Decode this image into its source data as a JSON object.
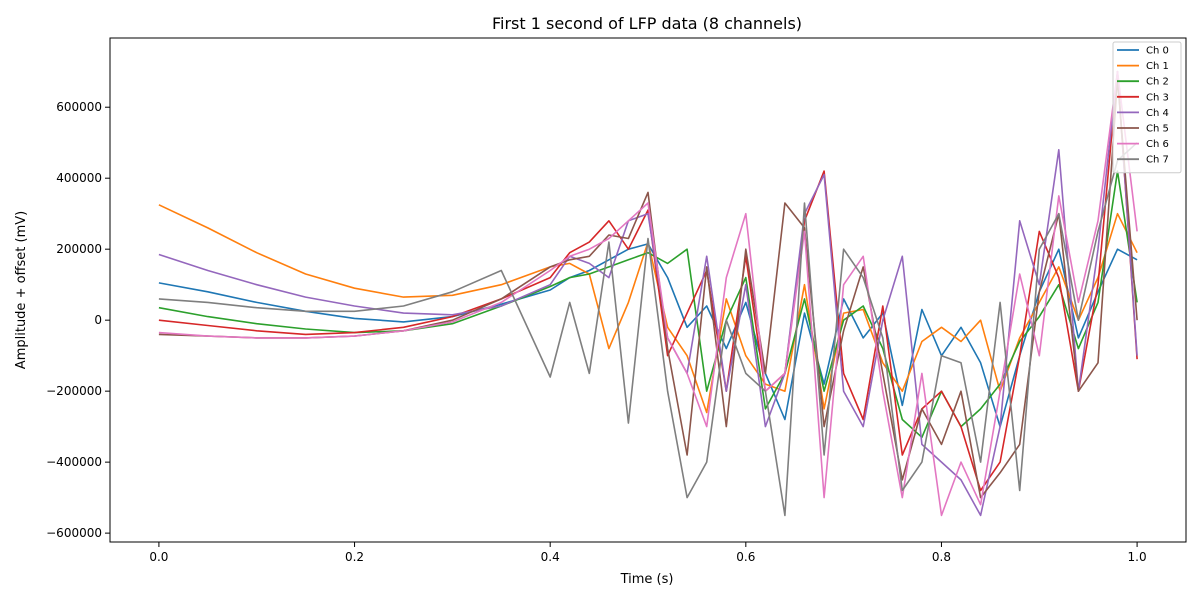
{
  "chart_data": {
    "type": "line",
    "title": "First 1 second of LFP data (8 channels)",
    "xlabel": "Time (s)",
    "ylabel": "Amplitude + offset (mV)",
    "xlim": [
      -0.05,
      1.05
    ],
    "ylim": [
      -625000,
      795000
    ],
    "xticks": [
      0.0,
      0.2,
      0.4,
      0.6,
      0.8,
      1.0
    ],
    "xtick_labels": [
      "0.0",
      "0.2",
      "0.4",
      "0.6",
      "0.8",
      "1.0"
    ],
    "yticks": [
      -600000,
      -400000,
      -200000,
      0,
      200000,
      400000,
      600000
    ],
    "ytick_labels": [
      "−600000",
      "−400000",
      "−200000",
      "0",
      "200000",
      "400000",
      "600000"
    ],
    "grid": false,
    "legend": "top-right",
    "x": [
      0.0,
      0.05,
      0.1,
      0.15,
      0.2,
      0.25,
      0.3,
      0.35,
      0.4,
      0.42,
      0.44,
      0.46,
      0.48,
      0.5,
      0.52,
      0.54,
      0.56,
      0.58,
      0.6,
      0.62,
      0.64,
      0.66,
      0.68,
      0.7,
      0.72,
      0.74,
      0.76,
      0.78,
      0.8,
      0.82,
      0.84,
      0.86,
      0.88,
      0.9,
      0.92,
      0.94,
      0.96,
      0.98,
      1.0
    ],
    "series": [
      {
        "name": "Ch 0",
        "color": "#1f77b4",
        "values": [
          105000,
          80000,
          50000,
          25000,
          5000,
          -5000,
          10000,
          45000,
          85000,
          120000,
          140000,
          170000,
          200000,
          215000,
          120000,
          -20000,
          40000,
          -80000,
          50000,
          -150000,
          -280000,
          20000,
          -180000,
          60000,
          -50000,
          20000,
          -240000,
          30000,
          -100000,
          -20000,
          -120000,
          -300000,
          -100000,
          80000,
          200000,
          -50000,
          80000,
          200000,
          170000
        ]
      },
      {
        "name": "Ch 1",
        "color": "#ff7f0e",
        "values": [
          325000,
          260000,
          190000,
          130000,
          90000,
          65000,
          70000,
          100000,
          150000,
          160000,
          130000,
          -80000,
          50000,
          220000,
          -20000,
          -100000,
          -260000,
          60000,
          -100000,
          -180000,
          -200000,
          100000,
          -250000,
          20000,
          30000,
          -120000,
          -200000,
          -60000,
          -20000,
          -60000,
          0,
          -200000,
          -50000,
          50000,
          150000,
          0,
          120000,
          300000,
          190000
        ]
      },
      {
        "name": "Ch 2",
        "color": "#2ca02c",
        "values": [
          35000,
          10000,
          -10000,
          -25000,
          -35000,
          -30000,
          -10000,
          40000,
          95000,
          120000,
          130000,
          150000,
          170000,
          190000,
          160000,
          200000,
          -200000,
          0,
          120000,
          -250000,
          -150000,
          60000,
          -200000,
          0,
          40000,
          -80000,
          -280000,
          -330000,
          -200000,
          -300000,
          -250000,
          -180000,
          -60000,
          10000,
          100000,
          -80000,
          50000,
          420000,
          50000
        ]
      },
      {
        "name": "Ch 3",
        "color": "#d62728",
        "values": [
          0,
          -15000,
          -30000,
          -40000,
          -35000,
          -20000,
          10000,
          60000,
          120000,
          190000,
          220000,
          280000,
          200000,
          310000,
          -100000,
          20000,
          140000,
          -200000,
          180000,
          -200000,
          -150000,
          280000,
          420000,
          -150000,
          -280000,
          40000,
          -380000,
          -250000,
          -200000,
          -300000,
          -480000,
          -400000,
          -100000,
          250000,
          120000,
          -200000,
          100000,
          700000,
          -110000
        ]
      },
      {
        "name": "Ch 4",
        "color": "#9467bd",
        "values": [
          185000,
          140000,
          100000,
          65000,
          40000,
          20000,
          15000,
          40000,
          100000,
          180000,
          160000,
          120000,
          280000,
          300000,
          -50000,
          -150000,
          180000,
          -200000,
          100000,
          -300000,
          -150000,
          300000,
          410000,
          -200000,
          -300000,
          0,
          180000,
          -350000,
          -400000,
          -450000,
          -550000,
          -300000,
          280000,
          100000,
          480000,
          -200000,
          200000,
          700000,
          -100000
        ]
      },
      {
        "name": "Ch 5",
        "color": "#8c564b",
        "values": [
          -40000,
          -45000,
          -50000,
          -50000,
          -45000,
          -30000,
          0,
          60000,
          150000,
          170000,
          180000,
          240000,
          230000,
          360000,
          -80000,
          -380000,
          150000,
          -300000,
          200000,
          -150000,
          330000,
          260000,
          -300000,
          -30000,
          150000,
          -150000,
          -450000,
          -250000,
          -350000,
          -200000,
          -500000,
          -430000,
          -350000,
          80000,
          300000,
          -200000,
          -120000,
          680000,
          0
        ]
      },
      {
        "name": "Ch 6",
        "color": "#e377c2",
        "values": [
          -35000,
          -45000,
          -50000,
          -50000,
          -45000,
          -30000,
          -5000,
          50000,
          140000,
          180000,
          200000,
          230000,
          280000,
          330000,
          -50000,
          -150000,
          -300000,
          120000,
          300000,
          -200000,
          -150000,
          250000,
          -500000,
          100000,
          180000,
          -200000,
          -500000,
          -150000,
          -550000,
          -400000,
          -520000,
          -200000,
          130000,
          -100000,
          350000,
          50000,
          280000,
          700000,
          250000
        ]
      },
      {
        "name": "Ch 7",
        "color": "#7f7f7f",
        "values": [
          60000,
          50000,
          35000,
          25000,
          25000,
          40000,
          80000,
          140000,
          -160000,
          50000,
          -150000,
          220000,
          -290000,
          230000,
          -200000,
          -500000,
          -400000,
          0,
          -150000,
          -200000,
          -550000,
          330000,
          -380000,
          200000,
          120000,
          -50000,
          -480000,
          -400000,
          -100000,
          -120000,
          -400000,
          50000,
          -480000,
          200000,
          300000,
          0,
          250000,
          450000,
          500000
        ]
      }
    ]
  }
}
